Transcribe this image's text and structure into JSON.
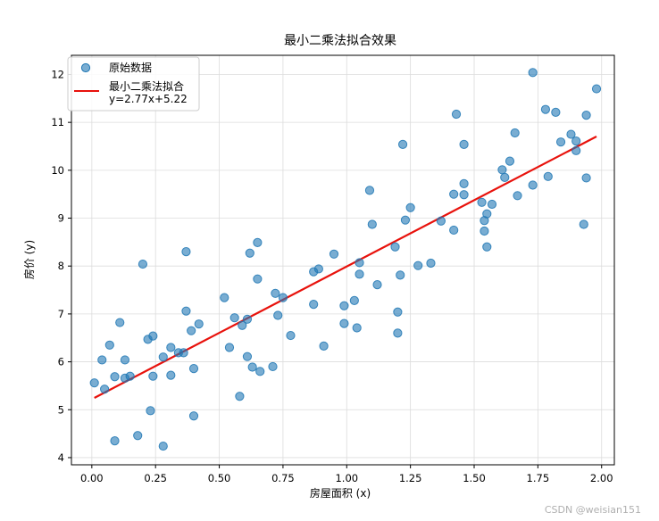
{
  "chart_data": {
    "type": "scatter",
    "title": "最小二乘法拟合效果",
    "xlabel": "房屋面积 (x)",
    "ylabel": "房价 (y)",
    "xlim": [
      -0.08,
      2.05
    ],
    "ylim": [
      3.85,
      12.4
    ],
    "xticks": [
      0.0,
      0.25,
      0.5,
      0.75,
      1.0,
      1.25,
      1.5,
      1.75,
      2.0
    ],
    "xtick_labels": [
      "0.00",
      "0.25",
      "0.50",
      "0.75",
      "1.00",
      "1.25",
      "1.50",
      "1.75",
      "2.00"
    ],
    "yticks": [
      4,
      5,
      6,
      7,
      8,
      9,
      10,
      11,
      12
    ],
    "ytick_labels": [
      "4",
      "5",
      "6",
      "7",
      "8",
      "9",
      "10",
      "11",
      "12"
    ],
    "grid": true,
    "legend": {
      "placement": "top-left",
      "entries": [
        "原始数据",
        "最小二乘法拟合\ny=2.77x+5.22"
      ]
    },
    "series": [
      {
        "name": "原始数据",
        "kind": "scatter",
        "color": "#1f77b4",
        "points": [
          [
            0.01,
            5.56
          ],
          [
            0.04,
            6.04
          ],
          [
            0.05,
            5.43
          ],
          [
            0.07,
            6.35
          ],
          [
            0.09,
            4.35
          ],
          [
            0.09,
            5.69
          ],
          [
            0.11,
            6.82
          ],
          [
            0.13,
            6.04
          ],
          [
            0.13,
            5.66
          ],
          [
            0.15,
            5.7
          ],
          [
            0.18,
            4.46
          ],
          [
            0.2,
            8.04
          ],
          [
            0.22,
            6.47
          ],
          [
            0.23,
            4.98
          ],
          [
            0.24,
            6.54
          ],
          [
            0.24,
            5.7
          ],
          [
            0.28,
            6.1
          ],
          [
            0.28,
            4.24
          ],
          [
            0.31,
            6.3
          ],
          [
            0.31,
            5.72
          ],
          [
            0.34,
            6.19
          ],
          [
            0.36,
            6.19
          ],
          [
            0.37,
            7.06
          ],
          [
            0.37,
            8.3
          ],
          [
            0.39,
            6.65
          ],
          [
            0.4,
            5.86
          ],
          [
            0.4,
            4.87
          ],
          [
            0.42,
            6.79
          ],
          [
            0.52,
            7.34
          ],
          [
            0.54,
            6.3
          ],
          [
            0.56,
            6.92
          ],
          [
            0.58,
            5.28
          ],
          [
            0.59,
            6.76
          ],
          [
            0.61,
            6.11
          ],
          [
            0.61,
            6.89
          ],
          [
            0.62,
            8.27
          ],
          [
            0.63,
            5.89
          ],
          [
            0.65,
            8.49
          ],
          [
            0.65,
            7.73
          ],
          [
            0.66,
            5.8
          ],
          [
            0.71,
            5.9
          ],
          [
            0.72,
            7.43
          ],
          [
            0.73,
            6.97
          ],
          [
            0.75,
            7.34
          ],
          [
            0.78,
            6.55
          ],
          [
            0.87,
            7.88
          ],
          [
            0.87,
            7.2
          ],
          [
            0.89,
            7.94
          ],
          [
            0.91,
            6.33
          ],
          [
            0.95,
            8.25
          ],
          [
            0.99,
            7.17
          ],
          [
            0.99,
            6.8
          ],
          [
            1.03,
            7.28
          ],
          [
            1.04,
            6.71
          ],
          [
            1.05,
            8.07
          ],
          [
            1.05,
            7.83
          ],
          [
            1.09,
            9.58
          ],
          [
            1.1,
            8.87
          ],
          [
            1.12,
            7.61
          ],
          [
            1.19,
            8.4
          ],
          [
            1.2,
            7.04
          ],
          [
            1.2,
            6.6
          ],
          [
            1.21,
            7.81
          ],
          [
            1.22,
            10.54
          ],
          [
            1.23,
            8.96
          ],
          [
            1.25,
            9.22
          ],
          [
            1.28,
            8.01
          ],
          [
            1.33,
            8.06
          ],
          [
            1.37,
            8.94
          ],
          [
            1.42,
            9.5
          ],
          [
            1.42,
            8.75
          ],
          [
            1.43,
            11.17
          ],
          [
            1.46,
            10.54
          ],
          [
            1.46,
            9.72
          ],
          [
            1.46,
            9.49
          ],
          [
            1.53,
            9.33
          ],
          [
            1.54,
            8.95
          ],
          [
            1.54,
            8.73
          ],
          [
            1.55,
            9.09
          ],
          [
            1.55,
            8.4
          ],
          [
            1.57,
            9.29
          ],
          [
            1.61,
            10.01
          ],
          [
            1.62,
            9.85
          ],
          [
            1.64,
            10.19
          ],
          [
            1.66,
            10.78
          ],
          [
            1.67,
            9.47
          ],
          [
            1.73,
            12.04
          ],
          [
            1.73,
            9.69
          ],
          [
            1.78,
            11.27
          ],
          [
            1.79,
            9.87
          ],
          [
            1.82,
            11.21
          ],
          [
            1.84,
            10.59
          ],
          [
            1.88,
            10.75
          ],
          [
            1.9,
            10.61
          ],
          [
            1.9,
            10.41
          ],
          [
            1.93,
            8.87
          ],
          [
            1.94,
            11.15
          ],
          [
            1.94,
            9.84
          ],
          [
            1.98,
            11.7
          ]
        ]
      },
      {
        "name": "最小二乘法拟合\ny=2.77x+5.22",
        "kind": "line",
        "color": "#e8120c",
        "slope": 2.77,
        "intercept": 5.22,
        "x": [
          0.01,
          1.98
        ]
      }
    ],
    "watermark": "CSDN @weisian151"
  }
}
